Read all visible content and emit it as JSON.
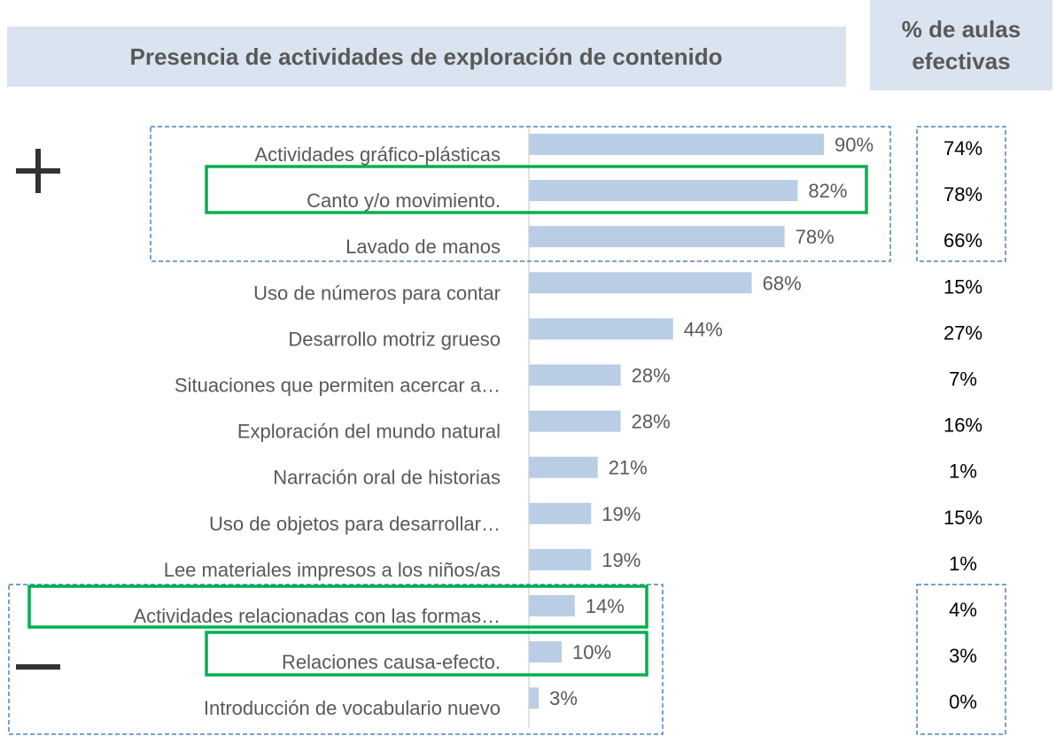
{
  "chart_data": {
    "type": "barh",
    "title": "Presencia de actividades de exploración de contenido",
    "categories": [
      "Actividades gráfico-plásticas",
      "Canto y/o movimiento.",
      "Lavado de manos",
      "Uso de números para contar",
      "Desarrollo motriz grueso",
      "Situaciones que permiten acercar a…",
      "Exploración del mundo natural",
      "Narración oral de historias",
      "Uso de objetos para desarrollar…",
      "Lee materiales impresos a los niños/as",
      "Actividades relacionadas con las formas…",
      "Relaciones causa-efecto.",
      "Introducción de vocabulario nuevo"
    ],
    "values": [
      90,
      82,
      78,
      68,
      44,
      28,
      28,
      21,
      19,
      19,
      14,
      10,
      3
    ],
    "value_labels": [
      "90%",
      "82%",
      "78%",
      "68%",
      "44%",
      "28%",
      "28%",
      "21%",
      "19%",
      "19%",
      "14%",
      "10%",
      "3%"
    ],
    "color": "#b9cde5",
    "xlim": [
      0,
      100
    ],
    "side_column": {
      "title": "% de aulas efectivas",
      "values": [
        74,
        78,
        66,
        15,
        27,
        7,
        16,
        1,
        15,
        1,
        4,
        3,
        0
      ],
      "value_labels": [
        "74%",
        "78%",
        "66%",
        "15%",
        "27%",
        "7%",
        "16%",
        "1%",
        "15%",
        "1%",
        "4%",
        "3%",
        "0%"
      ]
    }
  }
}
